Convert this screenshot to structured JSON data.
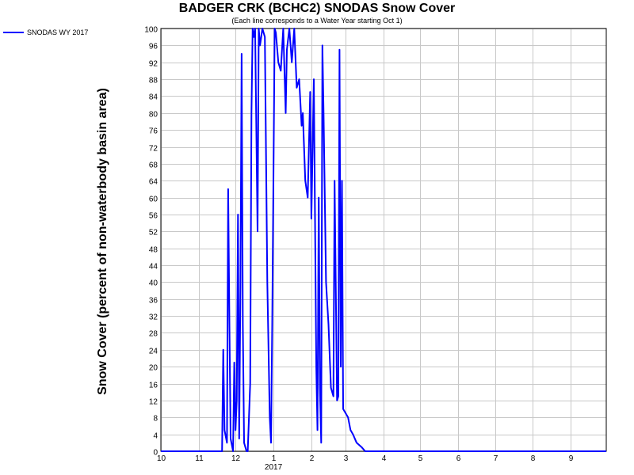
{
  "chart_data": {
    "type": "line",
    "title": "BADGER CRK (BCHC2) SNODAS Snow Cover",
    "subtitle": "(Each line corresponds to a Water Year starting Oct 1)",
    "xlabel": "",
    "ylabel": "Snow Cover (percent of non-waterbody basin area)",
    "ylim": [
      0,
      100
    ],
    "y_ticks": [
      0,
      4,
      8,
      12,
      16,
      20,
      24,
      28,
      32,
      36,
      40,
      44,
      48,
      52,
      56,
      60,
      64,
      68,
      72,
      76,
      80,
      84,
      88,
      92,
      96,
      100
    ],
    "x_ticks": [
      {
        "date": "2016-10-01",
        "label": "10"
      },
      {
        "date": "2016-11-01",
        "label": "11"
      },
      {
        "date": "2016-12-01",
        "label": "12"
      },
      {
        "date": "2017-01-01",
        "label": "1"
      },
      {
        "date": "2017-02-01",
        "label": "2"
      },
      {
        "date": "2017-03-01",
        "label": "3"
      },
      {
        "date": "2017-04-01",
        "label": "4"
      },
      {
        "date": "2017-05-01",
        "label": "5"
      },
      {
        "date": "2017-06-01",
        "label": "6"
      },
      {
        "date": "2017-07-01",
        "label": "7"
      },
      {
        "date": "2017-08-01",
        "label": "8"
      },
      {
        "date": "2017-09-01",
        "label": "9"
      }
    ],
    "year_label": "2017",
    "x_range": [
      "2016-10-01",
      "2017-09-30"
    ],
    "grid": true,
    "legend_position": "top-left",
    "series": [
      {
        "name": "SNODAS WY 2017",
        "color": "#0000ff",
        "points": [
          [
            "2016-10-01",
            0
          ],
          [
            "2016-11-20",
            0
          ],
          [
            "2016-11-21",
            24
          ],
          [
            "2016-11-22",
            5
          ],
          [
            "2016-11-24",
            2
          ],
          [
            "2016-11-25",
            62
          ],
          [
            "2016-11-26",
            30
          ],
          [
            "2016-11-27",
            3
          ],
          [
            "2016-11-29",
            0
          ],
          [
            "2016-11-30",
            21
          ],
          [
            "2016-12-01",
            5
          ],
          [
            "2016-12-02",
            12
          ],
          [
            "2016-12-03",
            56
          ],
          [
            "2016-12-04",
            3
          ],
          [
            "2016-12-05",
            39
          ],
          [
            "2016-12-06",
            94
          ],
          [
            "2016-12-07",
            30
          ],
          [
            "2016-12-08",
            2
          ],
          [
            "2016-12-10",
            0
          ],
          [
            "2016-12-11",
            0
          ],
          [
            "2016-12-13",
            16
          ],
          [
            "2016-12-14",
            80
          ],
          [
            "2016-12-15",
            100
          ],
          [
            "2016-12-16",
            98
          ],
          [
            "2016-12-17",
            100
          ],
          [
            "2016-12-19",
            52
          ],
          [
            "2016-12-20",
            100
          ],
          [
            "2016-12-21",
            96
          ],
          [
            "2016-12-22",
            98
          ],
          [
            "2016-12-23",
            100
          ],
          [
            "2016-12-25",
            98
          ],
          [
            "2016-12-27",
            40
          ],
          [
            "2016-12-29",
            8
          ],
          [
            "2016-12-30",
            2
          ],
          [
            "2016-12-31",
            30
          ],
          [
            "2017-01-02",
            100
          ],
          [
            "2017-01-03",
            99
          ],
          [
            "2017-01-05",
            92
          ],
          [
            "2017-01-07",
            90
          ],
          [
            "2017-01-09",
            100
          ],
          [
            "2017-01-11",
            80
          ],
          [
            "2017-01-12",
            95
          ],
          [
            "2017-01-14",
            100
          ],
          [
            "2017-01-16",
            92
          ],
          [
            "2017-01-18",
            100
          ],
          [
            "2017-01-20",
            86
          ],
          [
            "2017-01-22",
            88
          ],
          [
            "2017-01-24",
            77
          ],
          [
            "2017-01-25",
            80
          ],
          [
            "2017-01-27",
            64
          ],
          [
            "2017-01-29",
            60
          ],
          [
            "2017-01-31",
            85
          ],
          [
            "2017-02-01",
            55
          ],
          [
            "2017-02-03",
            88
          ],
          [
            "2017-02-05",
            20
          ],
          [
            "2017-02-06",
            5
          ],
          [
            "2017-02-07",
            60
          ],
          [
            "2017-02-08",
            15
          ],
          [
            "2017-02-09",
            2
          ],
          [
            "2017-02-10",
            96
          ],
          [
            "2017-02-11",
            80
          ],
          [
            "2017-02-13",
            40
          ],
          [
            "2017-02-15",
            30
          ],
          [
            "2017-02-17",
            15
          ],
          [
            "2017-02-19",
            13
          ],
          [
            "2017-02-20",
            64
          ],
          [
            "2017-02-22",
            12
          ],
          [
            "2017-02-23",
            13
          ],
          [
            "2017-02-24",
            95
          ],
          [
            "2017-02-25",
            20
          ],
          [
            "2017-02-26",
            64
          ],
          [
            "2017-02-27",
            10
          ],
          [
            "2017-03-01",
            9
          ],
          [
            "2017-03-03",
            8
          ],
          [
            "2017-03-05",
            5
          ],
          [
            "2017-03-07",
            4
          ],
          [
            "2017-03-10",
            2
          ],
          [
            "2017-03-14",
            1
          ],
          [
            "2017-03-17",
            0
          ],
          [
            "2017-09-30",
            0
          ]
        ]
      }
    ]
  }
}
